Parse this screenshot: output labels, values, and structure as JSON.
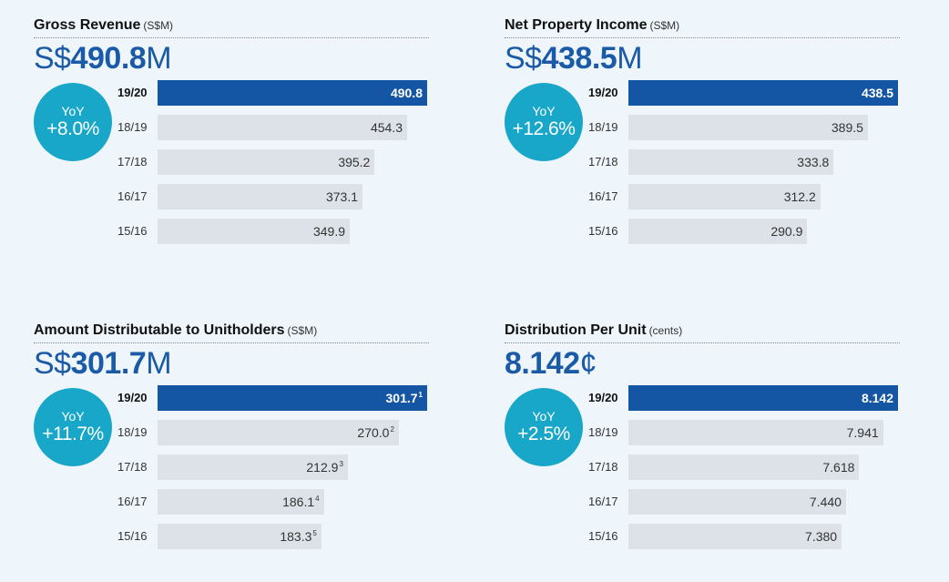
{
  "chart_data": [
    {
      "type": "bar",
      "orientation": "horizontal",
      "title": "Gross Revenue",
      "unit": "(S$M)",
      "headline": {
        "prefix": "S$",
        "value": "490.8",
        "suffix": "M"
      },
      "yoy": {
        "label": "YoY",
        "value": "+8.0%"
      },
      "categories": [
        "19/20",
        "18/19",
        "17/18",
        "16/17",
        "15/16"
      ],
      "values": [
        490.8,
        454.3,
        395.2,
        373.1,
        349.9
      ],
      "value_labels": [
        "490.8",
        "454.3",
        "395.2",
        "373.1",
        "349.9"
      ],
      "footnotes": [
        "",
        "",
        "",
        "",
        ""
      ],
      "highlight_color": "#1556a4",
      "bar_color": "#dde2e8"
    },
    {
      "type": "bar",
      "orientation": "horizontal",
      "title": "Net Property Income",
      "unit": "(S$M)",
      "headline": {
        "prefix": "S$",
        "value": "438.5",
        "suffix": "M"
      },
      "yoy": {
        "label": "YoY",
        "value": "+12.6%"
      },
      "categories": [
        "19/20",
        "18/19",
        "17/18",
        "16/17",
        "15/16"
      ],
      "values": [
        438.5,
        389.5,
        333.8,
        312.2,
        290.9
      ],
      "value_labels": [
        "438.5",
        "389.5",
        "333.8",
        "312.2",
        "290.9"
      ],
      "footnotes": [
        "",
        "",
        "",
        "",
        ""
      ],
      "highlight_color": "#1556a4",
      "bar_color": "#dde2e8"
    },
    {
      "type": "bar",
      "orientation": "horizontal",
      "title": "Amount Distributable to Unitholders",
      "unit": "(S$M)",
      "headline": {
        "prefix": "S$",
        "value": "301.7",
        "suffix": "M"
      },
      "yoy": {
        "label": "YoY",
        "value": "+11.7%"
      },
      "categories": [
        "19/20",
        "18/19",
        "17/18",
        "16/17",
        "15/16"
      ],
      "values": [
        301.7,
        270.0,
        212.9,
        186.1,
        183.3
      ],
      "value_labels": [
        "301.7",
        "270.0",
        "212.9",
        "186.1",
        "183.3"
      ],
      "footnotes": [
        "1",
        "2",
        "3",
        "4",
        "5"
      ],
      "highlight_color": "#1556a4",
      "bar_color": "#dde2e8"
    },
    {
      "type": "bar",
      "orientation": "horizontal",
      "title": "Distribution Per Unit",
      "unit": "(cents)",
      "headline": {
        "prefix": "",
        "value": "8.142",
        "suffix": "¢"
      },
      "yoy": {
        "label": "YoY",
        "value": "+2.5%"
      },
      "categories": [
        "19/20",
        "18/19",
        "17/18",
        "16/17",
        "15/16"
      ],
      "values": [
        8.142,
        7.941,
        7.618,
        7.44,
        7.38
      ],
      "value_labels": [
        "8.142",
        "7.941",
        "7.618",
        "7.440",
        "7.380"
      ],
      "footnotes": [
        "",
        "",
        "",
        "",
        ""
      ],
      "highlight_color": "#1556a4",
      "bar_color": "#dde2e8"
    }
  ]
}
